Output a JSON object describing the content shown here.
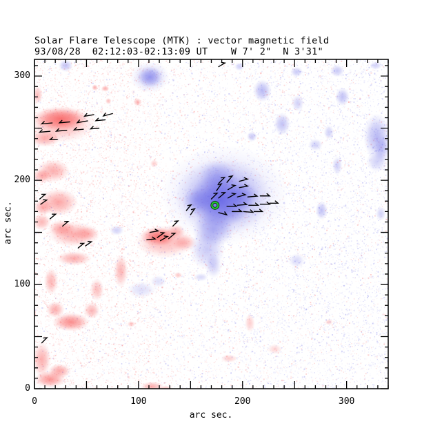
{
  "header": {
    "title": "Solar Flare Telescope (MTK) : vector magnetic field",
    "subtitle": "93/08/28  02:12:03-02:13:09 UT    W 7' 2\"  N 3'31\""
  },
  "axes": {
    "xlabel": "arc sec.",
    "ylabel": "arc sec.",
    "x_tick_labels": [
      0,
      100,
      200,
      300
    ],
    "y_tick_labels": [
      0,
      100,
      200,
      300
    ],
    "x_range": [
      0,
      340
    ],
    "y_range": [
      0,
      316
    ],
    "minor_tick_step": 10,
    "major_tick_step": 50
  },
  "colors": {
    "positive_polarity": "#f85c5c",
    "negative_polarity": "#6464e6",
    "arrow": "#000000",
    "marker_ring": "#22cc33",
    "frame": "#000000",
    "background": "#ffffff"
  },
  "chart_data": {
    "type": "heatmap",
    "title": "Solar Flare Telescope (MTK) : vector magnetic field",
    "datetime_label": "93/08/28  02:12:03-02:13:09 UT",
    "position_label": "W 7' 2\"  N 3'31\"",
    "units": "arc sec",
    "positive_blobs": [
      [
        25,
        259,
        26,
        11,
        0.8
      ],
      [
        26,
        254,
        33,
        18,
        0.45
      ],
      [
        10,
        240,
        15,
        8,
        0.5
      ],
      [
        3,
        282,
        5,
        9,
        0.4
      ],
      [
        18,
        209,
        16,
        11,
        0.5
      ],
      [
        7,
        204,
        9,
        7,
        0.5
      ],
      [
        23,
        179,
        19,
        13,
        0.55
      ],
      [
        8,
        174,
        9,
        8,
        0.5
      ],
      [
        7,
        160,
        9,
        8,
        0.45
      ],
      [
        38,
        148,
        25,
        12,
        0.5
      ],
      [
        26,
        154,
        13,
        8,
        0.5
      ],
      [
        50,
        149,
        12,
        7,
        0.35
      ],
      [
        38,
        125,
        17,
        7,
        0.5
      ],
      [
        16,
        103,
        7,
        13,
        0.45
      ],
      [
        60,
        95,
        7,
        11,
        0.4
      ],
      [
        20,
        76,
        9,
        8,
        0.5
      ],
      [
        35,
        64,
        18,
        9,
        0.7
      ],
      [
        55,
        75,
        8,
        8,
        0.45
      ],
      [
        7,
        28,
        9,
        17,
        0.5
      ],
      [
        24,
        17,
        11,
        7,
        0.55
      ],
      [
        15,
        9,
        15,
        8,
        0.65
      ],
      [
        119,
        146,
        17,
        9,
        0.8
      ],
      [
        125,
        141,
        28,
        16,
        0.45
      ],
      [
        144,
        140,
        12,
        8,
        0.4
      ],
      [
        136,
        151,
        9,
        7,
        0.4
      ],
      [
        83,
        113,
        7,
        16,
        0.45
      ],
      [
        113,
        2,
        11,
        5,
        0.5
      ],
      [
        126,
        0,
        7,
        3,
        0.4
      ],
      [
        58,
        289,
        3,
        3,
        0.5
      ],
      [
        68,
        288,
        4,
        3,
        0.5
      ],
      [
        71,
        276,
        3,
        3,
        0.4
      ],
      [
        99,
        275,
        4,
        4,
        0.45
      ],
      [
        115,
        216,
        4,
        4,
        0.3
      ],
      [
        93,
        62,
        4,
        3,
        0.35
      ],
      [
        138,
        109,
        4,
        3,
        0.35
      ],
      [
        207,
        63,
        5,
        9,
        0.3
      ],
      [
        187,
        29,
        8,
        4,
        0.3
      ],
      [
        231,
        38,
        7,
        5,
        0.25
      ],
      [
        283,
        64,
        4,
        3,
        0.3
      ]
    ],
    "negative_blobs": [
      [
        179,
        181,
        30,
        26,
        0.85
      ],
      [
        181,
        184,
        46,
        37,
        0.5
      ],
      [
        183,
        186,
        62,
        48,
        0.25
      ],
      [
        172,
        153,
        20,
        17,
        0.5
      ],
      [
        166,
        134,
        17,
        20,
        0.35
      ],
      [
        172,
        118,
        8,
        12,
        0.3
      ],
      [
        156,
        181,
        14,
        12,
        0.4
      ],
      [
        176,
        205,
        18,
        14,
        0.35
      ],
      [
        200,
        185,
        16,
        13,
        0.4
      ],
      [
        111,
        299,
        12,
        10,
        0.55
      ],
      [
        111,
        299,
        19,
        15,
        0.3
      ],
      [
        30,
        310,
        7,
        6,
        0.4
      ],
      [
        219,
        286,
        9,
        11,
        0.45
      ],
      [
        252,
        304,
        6,
        5,
        0.35
      ],
      [
        253,
        274,
        6,
        8,
        0.3
      ],
      [
        238,
        254,
        8,
        11,
        0.4
      ],
      [
        209,
        242,
        5,
        5,
        0.35
      ],
      [
        296,
        280,
        7,
        9,
        0.4
      ],
      [
        291,
        305,
        7,
        6,
        0.35
      ],
      [
        328,
        310,
        6,
        4,
        0.3
      ],
      [
        197,
        309,
        5,
        4,
        0.3
      ],
      [
        283,
        246,
        5,
        7,
        0.3
      ],
      [
        270,
        234,
        7,
        6,
        0.3
      ],
      [
        329,
        242,
        13,
        22,
        0.45
      ],
      [
        334,
        230,
        8,
        14,
        0.35
      ],
      [
        329,
        218,
        10,
        10,
        0.3
      ],
      [
        291,
        214,
        5,
        9,
        0.3
      ],
      [
        276,
        171,
        6,
        9,
        0.4
      ],
      [
        333,
        168,
        5,
        7,
        0.3
      ],
      [
        103,
        95,
        14,
        8,
        0.22
      ],
      [
        119,
        103,
        8,
        6,
        0.2
      ],
      [
        160,
        107,
        7,
        4,
        0.25
      ],
      [
        252,
        123,
        8,
        7,
        0.25
      ],
      [
        79,
        152,
        7,
        5,
        0.3
      ]
    ],
    "field_vectors": [
      [
        177,
        197,
        45,
        8
      ],
      [
        185,
        198,
        50,
        8
      ],
      [
        197,
        199,
        15,
        8
      ],
      [
        175,
        190,
        55,
        8
      ],
      [
        186,
        191,
        30,
        8
      ],
      [
        197,
        193,
        10,
        8
      ],
      [
        170,
        182,
        45,
        8
      ],
      [
        177,
        183,
        40,
        8
      ],
      [
        186,
        183,
        30,
        8
      ],
      [
        195,
        184,
        15,
        8
      ],
      [
        205,
        184,
        5,
        9
      ],
      [
        217,
        185,
        0,
        9
      ],
      [
        185,
        175,
        0,
        9
      ],
      [
        195,
        176,
        5,
        9
      ],
      [
        206,
        176,
        0,
        9
      ],
      [
        217,
        177,
        0,
        9
      ],
      [
        226,
        178,
        0,
        8
      ],
      [
        177,
        169,
        -15,
        8
      ],
      [
        190,
        170,
        0,
        9
      ],
      [
        201,
        170,
        -5,
        9
      ],
      [
        211,
        170,
        0,
        8
      ],
      [
        57,
        263,
        190,
        9
      ],
      [
        75,
        264,
        195,
        9
      ],
      [
        17,
        255,
        185,
        10
      ],
      [
        34,
        256,
        185,
        10
      ],
      [
        51,
        257,
        190,
        10
      ],
      [
        68,
        258,
        185,
        9
      ],
      [
        15,
        247,
        185,
        10
      ],
      [
        31,
        248,
        185,
        10
      ],
      [
        47,
        249,
        185,
        9
      ],
      [
        62,
        250,
        185,
        8
      ],
      [
        22,
        239,
        180,
        7
      ],
      [
        5,
        182,
        40,
        7
      ],
      [
        6,
        177,
        35,
        7
      ],
      [
        15,
        163,
        40,
        7
      ],
      [
        27,
        156,
        40,
        7
      ],
      [
        42,
        135,
        40,
        7
      ],
      [
        49,
        137,
        35,
        7
      ],
      [
        7,
        44,
        45,
        7
      ],
      [
        111,
        150,
        10,
        8
      ],
      [
        118,
        145,
        35,
        8
      ],
      [
        108,
        143,
        5,
        8
      ],
      [
        121,
        142,
        30,
        8
      ],
      [
        129,
        144,
        40,
        8
      ],
      [
        133,
        156,
        45,
        7
      ],
      [
        146,
        171,
        50,
        7
      ],
      [
        150,
        167,
        55,
        7
      ],
      [
        177,
        309,
        30,
        7
      ]
    ],
    "marker": {
      "x": 173.5,
      "y": 176,
      "shape": "ring"
    }
  }
}
